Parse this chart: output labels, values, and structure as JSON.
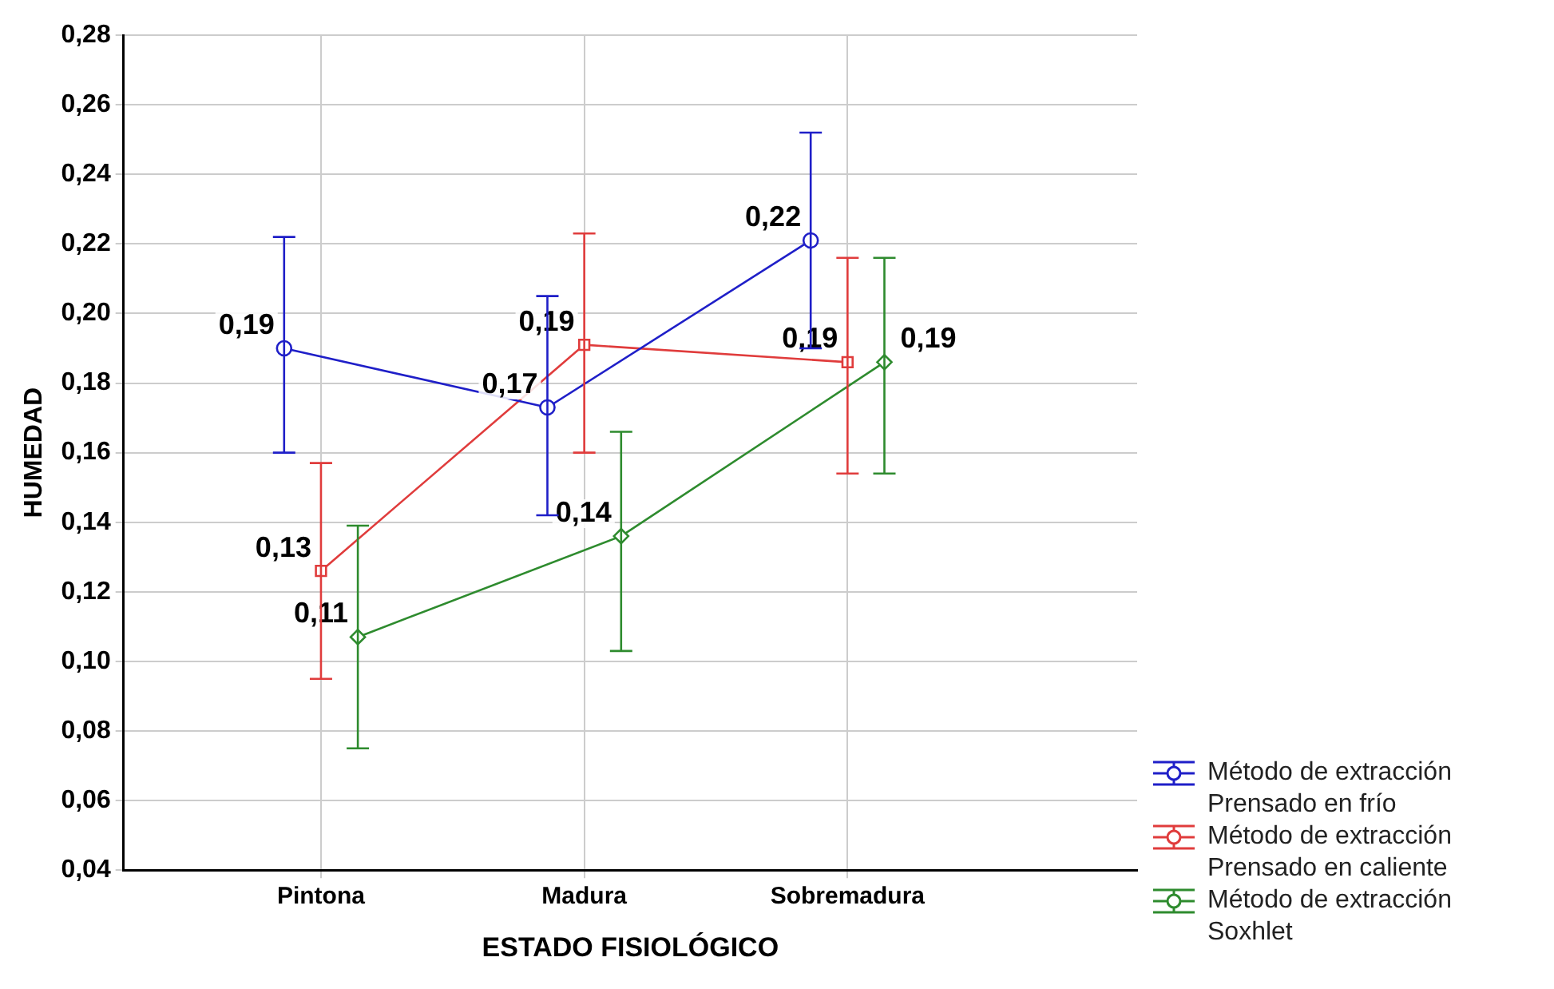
{
  "chart_data": {
    "type": "line",
    "xlabel": "ESTADO FISIOLÓGICO",
    "ylabel": "HUMEDAD",
    "categories": [
      "Pintona",
      "Madura",
      "Sobremadura"
    ],
    "series": [
      {
        "name": "Método de extracción Prensado en frío",
        "color": "#1f1fc8",
        "marker": "circle",
        "values": [
          0.19,
          0.173,
          0.221
        ],
        "errors": [
          [
            0.16,
            0.222
          ],
          [
            0.142,
            0.205
          ],
          [
            0.19,
            0.252
          ]
        ],
        "value_labels": [
          "0,19",
          "0,17",
          "0,22"
        ]
      },
      {
        "name": "Método de extracción Prensado en caliente",
        "color": "#e03c3c",
        "marker": "square",
        "values": [
          0.126,
          0.191,
          0.186
        ],
        "errors": [
          [
            0.095,
            0.157
          ],
          [
            0.16,
            0.223
          ],
          [
            0.154,
            0.216
          ]
        ],
        "value_labels": [
          "0,13",
          "0,19",
          "0,19"
        ]
      },
      {
        "name": "Método de extracción Soxhlet",
        "color": "#2e8b2e",
        "marker": "diamond",
        "values": [
          0.107,
          0.136,
          0.186
        ],
        "errors": [
          [
            0.075,
            0.139
          ],
          [
            0.103,
            0.166
          ],
          [
            0.154,
            0.216
          ]
        ],
        "value_labels": [
          "0,11",
          "0,14",
          "0,19"
        ]
      }
    ],
    "ylim": [
      0.04,
      0.28
    ],
    "yticks": [
      {
        "value": 0.04,
        "label": "0,04"
      },
      {
        "value": 0.06,
        "label": "0,06"
      },
      {
        "value": 0.08,
        "label": "0,08"
      },
      {
        "value": 0.1,
        "label": "0,10"
      },
      {
        "value": 0.12,
        "label": "0,12"
      },
      {
        "value": 0.14,
        "label": "0,14"
      },
      {
        "value": 0.16,
        "label": "0,16"
      },
      {
        "value": 0.18,
        "label": "0,18"
      },
      {
        "value": 0.2,
        "label": "0,20"
      },
      {
        "value": 0.22,
        "label": "0,22"
      },
      {
        "value": 0.24,
        "label": "0,24"
      },
      {
        "value": 0.26,
        "label": "0,26"
      },
      {
        "value": 0.28,
        "label": "0,28"
      }
    ],
    "grid": true,
    "legend": "bottom right",
    "line_style": "solid"
  }
}
